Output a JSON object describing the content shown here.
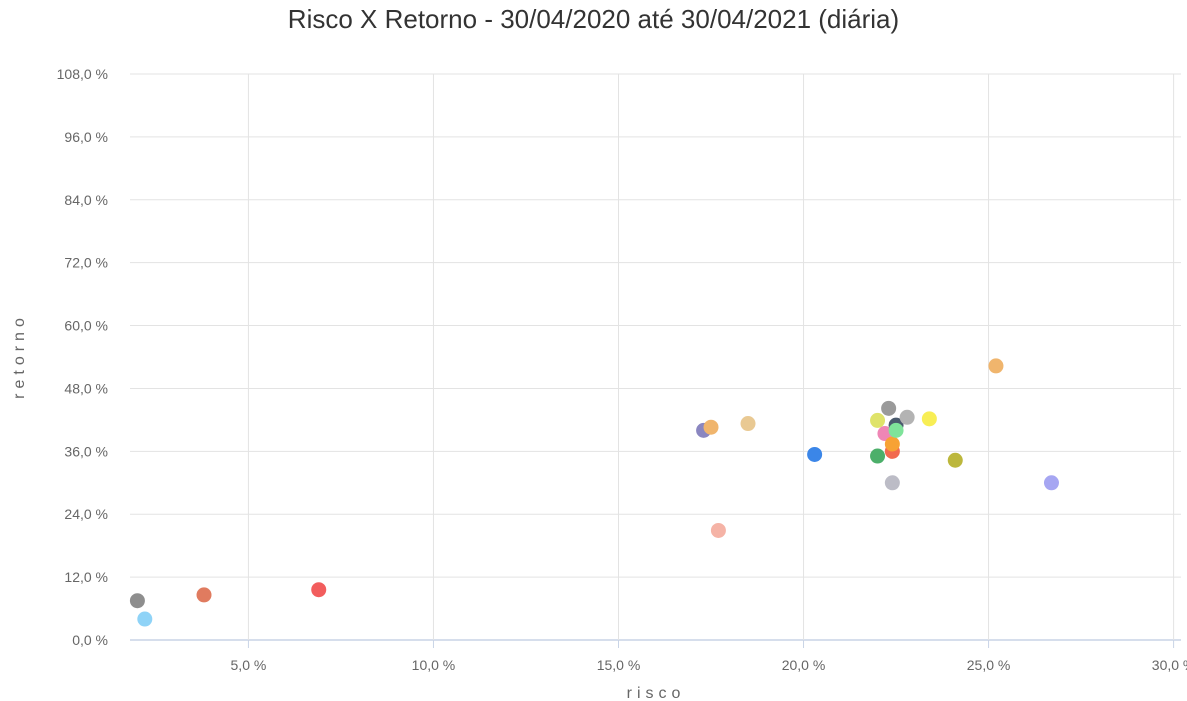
{
  "chart_data": {
    "type": "scatter",
    "title": "Risco X Retorno - 30/04/2020 até 30/04/2021 (diária)",
    "xlabel": "risco",
    "ylabel": "retorno",
    "xlim": [
      1.8,
      30.2
    ],
    "ylim": [
      0,
      108
    ],
    "x_ticks": [
      5,
      10,
      15,
      20,
      25,
      30
    ],
    "x_tick_labels": [
      "5,0 %",
      "10,0 %",
      "15,0 %",
      "20,0 %",
      "25,0 %",
      "30,0 %"
    ],
    "y_ticks": [
      0,
      12,
      24,
      36,
      48,
      60,
      72,
      84,
      96,
      108
    ],
    "y_tick_labels": [
      "0,0 %",
      "12,0 %",
      "24,0 %",
      "36,0 %",
      "48,0 %",
      "60,0 %",
      "72,0 %",
      "84,0 %",
      "96,0 %",
      "108,0 %"
    ],
    "grid": true,
    "legend": "none",
    "points": [
      {
        "x": 2.0,
        "y": 7.5,
        "color": "#8e8e8e"
      },
      {
        "x": 2.2,
        "y": 4.0,
        "color": "#8fd3f7"
      },
      {
        "x": 3.8,
        "y": 8.6,
        "color": "#e07b5f"
      },
      {
        "x": 6.9,
        "y": 9.6,
        "color": "#f25d5d"
      },
      {
        "x": 17.3,
        "y": 40.0,
        "color": "#8a86c0"
      },
      {
        "x": 17.5,
        "y": 40.6,
        "color": "#f0b56d"
      },
      {
        "x": 17.7,
        "y": 20.9,
        "color": "#f5b3a6"
      },
      {
        "x": 18.5,
        "y": 41.3,
        "color": "#e9c993"
      },
      {
        "x": 20.3,
        "y": 35.4,
        "color": "#3b86e8"
      },
      {
        "x": 22.0,
        "y": 41.9,
        "color": "#dfe36a"
      },
      {
        "x": 22.0,
        "y": 35.1,
        "color": "#4caf6a"
      },
      {
        "x": 22.2,
        "y": 39.4,
        "color": "#ef86b5"
      },
      {
        "x": 22.3,
        "y": 44.2,
        "color": "#9a9a9a"
      },
      {
        "x": 22.4,
        "y": 30.0,
        "color": "#bcbcc6"
      },
      {
        "x": 22.4,
        "y": 36.0,
        "color": "#f26a4f"
      },
      {
        "x": 22.4,
        "y": 37.4,
        "color": "#f7a234"
      },
      {
        "x": 22.5,
        "y": 41.0,
        "color": "#4a5a6d"
      },
      {
        "x": 22.5,
        "y": 40.0,
        "color": "#7fe39a"
      },
      {
        "x": 22.8,
        "y": 42.5,
        "color": "#b3b3b3"
      },
      {
        "x": 23.4,
        "y": 42.2,
        "color": "#f8ee55"
      },
      {
        "x": 24.1,
        "y": 34.3,
        "color": "#bcb73c"
      },
      {
        "x": 25.2,
        "y": 52.3,
        "color": "#f0b56d"
      },
      {
        "x": 26.7,
        "y": 30.0,
        "color": "#a6a6f2"
      }
    ]
  }
}
